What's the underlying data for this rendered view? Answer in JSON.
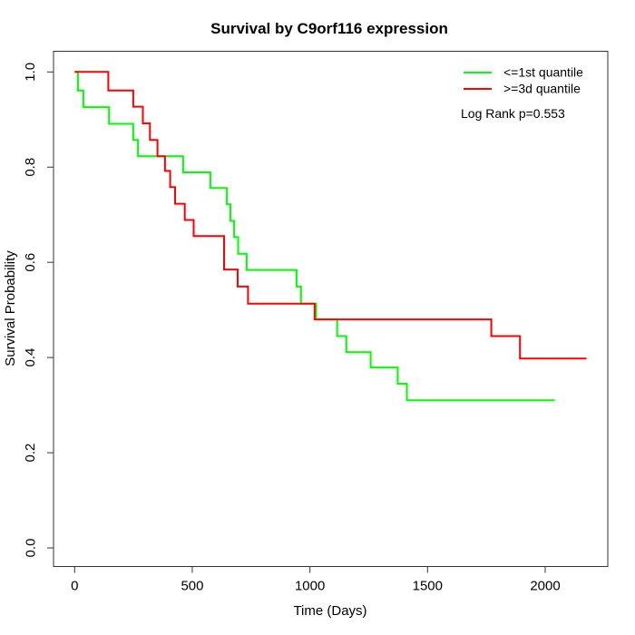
{
  "page": {
    "background": "#FFFFFF"
  },
  "chart_data": {
    "type": "line",
    "variant": "kaplan_meier_step",
    "title": "Survival by C9orf116 expression",
    "xlabel": "Time (Days)",
    "ylabel": "Survival Probability",
    "xlim": [
      0,
      2263
    ],
    "ylim": [
      0.0,
      1.0
    ],
    "grid": false,
    "legend_position": "top-right",
    "annotation": "Log Rank p=0.553",
    "axis_color": "#333333",
    "text_color": "#000000",
    "x_ticks": [
      {
        "label": "0",
        "value": 0
      },
      {
        "label": "500",
        "value": 500
      },
      {
        "label": "1000",
        "value": 1000
      },
      {
        "label": "1500",
        "value": 1500
      },
      {
        "label": "2000",
        "value": 2000
      }
    ],
    "y_ticks": [
      {
        "label": "0.0",
        "value": 0.0
      },
      {
        "label": "0.2",
        "value": 0.2
      },
      {
        "label": "0.4",
        "value": 0.4
      },
      {
        "label": "0.6",
        "value": 0.6
      },
      {
        "label": "0.8",
        "value": 0.8
      },
      {
        "label": "1.0",
        "value": 1.0
      }
    ],
    "series": [
      {
        "name": "<=1st quantile",
        "color": "#00FF00",
        "start": [
          0,
          1.0
        ],
        "drops": [
          [
            14,
            0.961
          ],
          [
            37,
            0.926
          ],
          [
            146,
            0.891
          ],
          [
            249,
            0.857
          ],
          [
            269,
            0.823
          ],
          [
            461,
            0.789
          ],
          [
            577,
            0.756
          ],
          [
            647,
            0.722
          ],
          [
            662,
            0.687
          ],
          [
            678,
            0.653
          ],
          [
            695,
            0.618
          ],
          [
            731,
            0.584
          ],
          [
            943,
            0.549
          ],
          [
            962,
            0.513
          ],
          [
            1026,
            0.48
          ],
          [
            1116,
            0.445
          ],
          [
            1155,
            0.411
          ],
          [
            1258,
            0.379
          ],
          [
            1373,
            0.345
          ],
          [
            1412,
            0.31
          ]
        ],
        "end_time": 2041,
        "final_value": 0.31
      },
      {
        "name": ">=3d quantile",
        "color": "#FF0000",
        "start": [
          0,
          1.0
        ],
        "drops": [
          [
            143,
            0.961
          ],
          [
            249,
            0.927
          ],
          [
            290,
            0.892
          ],
          [
            320,
            0.857
          ],
          [
            352,
            0.823
          ],
          [
            384,
            0.792
          ],
          [
            406,
            0.758
          ],
          [
            427,
            0.723
          ],
          [
            468,
            0.689
          ],
          [
            506,
            0.655
          ],
          [
            635,
            0.585
          ],
          [
            693,
            0.549
          ],
          [
            737,
            0.513
          ],
          [
            1020,
            0.48
          ],
          [
            1771,
            0.445
          ],
          [
            1893,
            0.398
          ]
        ],
        "end_time": 2176,
        "final_value": 0.398
      }
    ]
  }
}
